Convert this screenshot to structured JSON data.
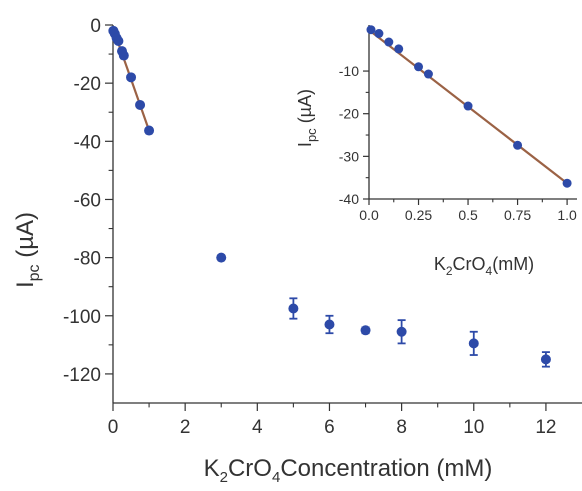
{
  "colors": {
    "point": "#2d4aa8",
    "fit_line": "#9b6245",
    "axis": "#333333"
  },
  "chart_data": [
    {
      "type": "scatter",
      "role": "main",
      "xlabel": {
        "base": "K",
        "sub1": "2",
        "mid": "CrO",
        "sub2": "4",
        "rest": "Concentration (mM)"
      },
      "ylabel": {
        "base": "I",
        "sub": "pc",
        "rest": " (µA)"
      },
      "xlim": [
        0,
        13
      ],
      "ylim": [
        -130,
        0
      ],
      "xticks": [
        0,
        2,
        4,
        6,
        8,
        10,
        12
      ],
      "yticks": [
        0,
        -20,
        -40,
        -60,
        -80,
        -100,
        -120
      ],
      "grid": false,
      "points": [
        {
          "x": 0.01,
          "y": -2,
          "err": 0
        },
        {
          "x": 0.05,
          "y": -3,
          "err": 0
        },
        {
          "x": 0.1,
          "y": -4.5,
          "err": 0
        },
        {
          "x": 0.15,
          "y": -5.5,
          "err": 0
        },
        {
          "x": 0.25,
          "y": -9,
          "err": 0
        },
        {
          "x": 0.3,
          "y": -10.5,
          "err": 0
        },
        {
          "x": 0.5,
          "y": -18,
          "err": 0
        },
        {
          "x": 0.75,
          "y": -27.5,
          "err": 0
        },
        {
          "x": 1.0,
          "y": -36.3,
          "err": 0
        },
        {
          "x": 3,
          "y": -80,
          "err": 0
        },
        {
          "x": 5,
          "y": -97.5,
          "err": 3.5
        },
        {
          "x": 6,
          "y": -103,
          "err": 3
        },
        {
          "x": 7,
          "y": -105,
          "err": 1
        },
        {
          "x": 8,
          "y": -105.5,
          "err": 4
        },
        {
          "x": 10,
          "y": -109.5,
          "err": 4
        },
        {
          "x": 12,
          "y": -115,
          "err": 2.5
        }
      ],
      "fit_line": [
        {
          "x": 0,
          "y": -1
        },
        {
          "x": 1.0,
          "y": -36.3
        }
      ]
    },
    {
      "type": "scatter",
      "role": "inset",
      "xlabel": {
        "base": "K",
        "sub1": "2",
        "mid": "CrO",
        "sub2": "4",
        "rest": "(mM)"
      },
      "ylabel": {
        "base": "I",
        "sub": "pc",
        "rest": " (µA)"
      },
      "xlim": [
        0,
        1.05
      ],
      "ylim": [
        -40,
        0.8
      ],
      "xticks": [
        0.0,
        0.25,
        0.5,
        0.75,
        1.0
      ],
      "xtick_labels": [
        "0.0",
        "0.25",
        "0.5",
        "0.75",
        "1.0"
      ],
      "yticks": [
        -10,
        -20,
        -30,
        -40
      ],
      "grid": false,
      "points": [
        {
          "x": 0.01,
          "y": -0.3
        },
        {
          "x": 0.05,
          "y": -1.2
        },
        {
          "x": 0.1,
          "y": -3.2
        },
        {
          "x": 0.15,
          "y": -4.8
        },
        {
          "x": 0.25,
          "y": -9.0
        },
        {
          "x": 0.3,
          "y": -10.7
        },
        {
          "x": 0.5,
          "y": -18.2
        },
        {
          "x": 0.75,
          "y": -27.4
        },
        {
          "x": 1.0,
          "y": -36.3
        }
      ],
      "fit_line": [
        {
          "x": 0.0,
          "y": -0.4
        },
        {
          "x": 1.0,
          "y": -36.3
        }
      ]
    }
  ]
}
